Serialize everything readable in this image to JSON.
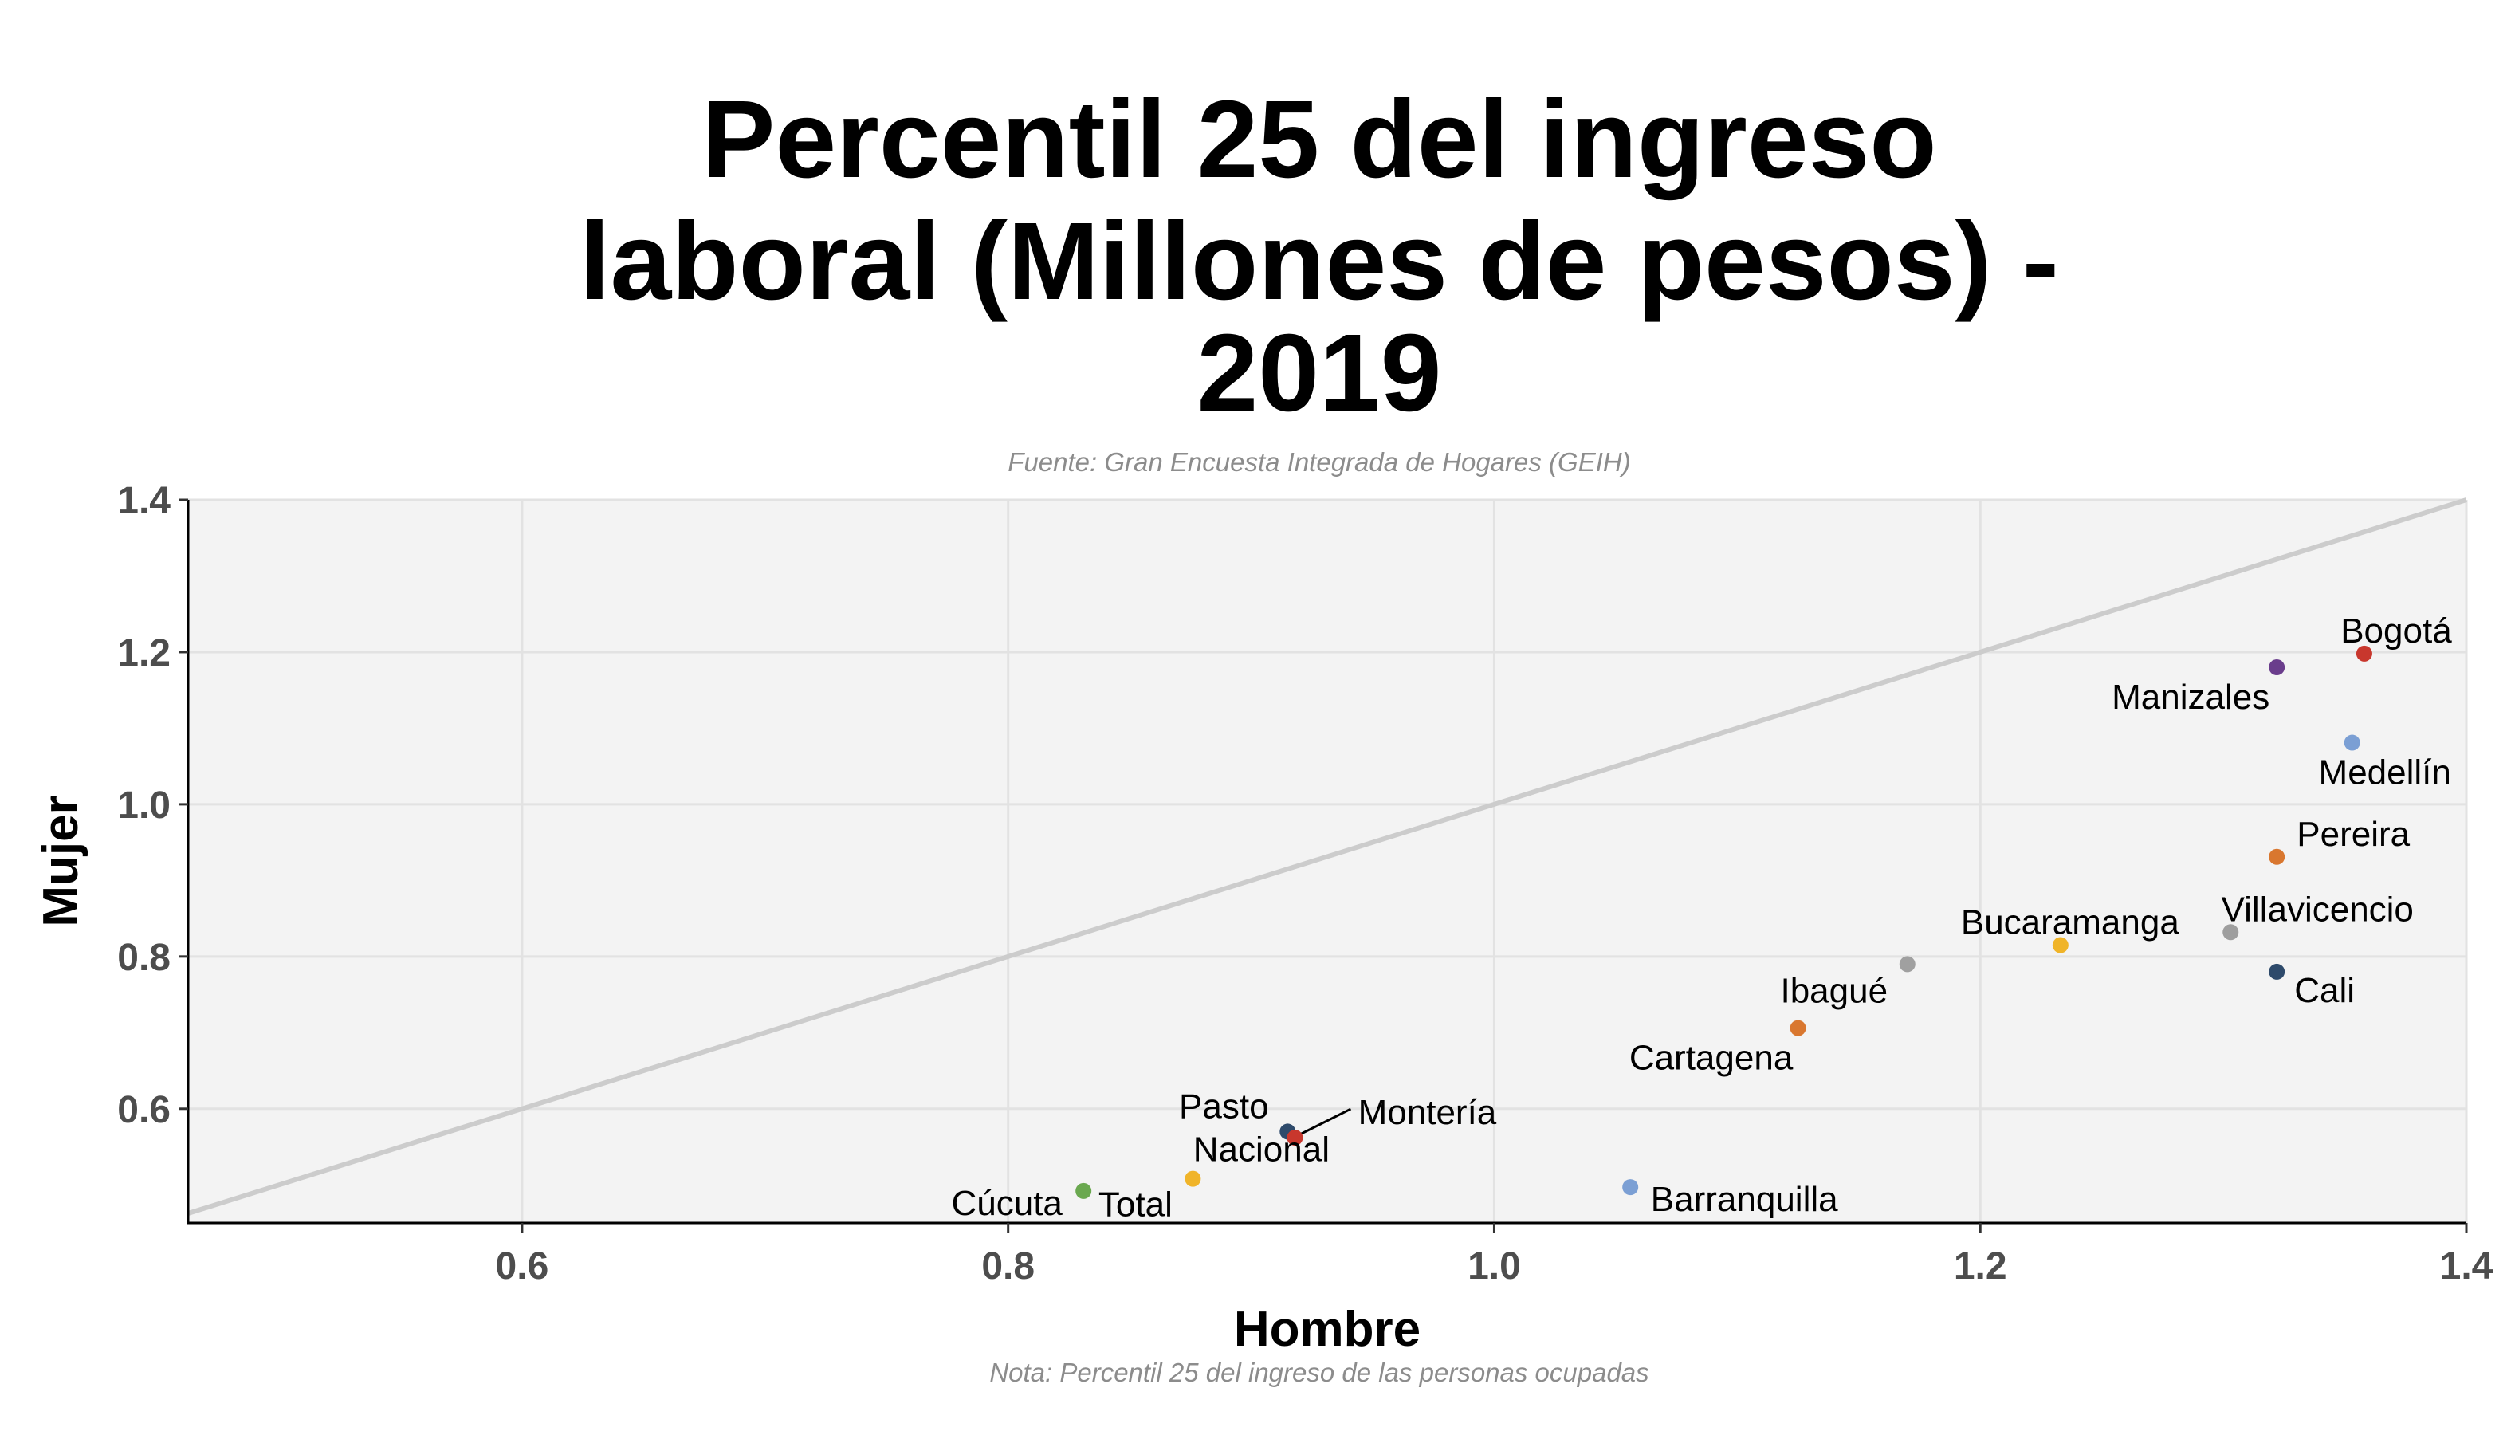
{
  "chart_data": {
    "type": "scatter",
    "title_lines": [
      "Percentil 25 del ingreso",
      "laboral (Millones de pesos) -",
      "2019"
    ],
    "subtitle": "Fuente: Gran Encuesta Integrada de Hogares (GEIH)",
    "caption": "Nota: Percentil 25 del ingreso de las personas ocupadas",
    "xlabel": "Hombre",
    "ylabel": "Mujer",
    "xlim": [
      0.4626,
      1.4
    ],
    "ylim": [
      0.45,
      1.4
    ],
    "xticks": [
      0.6,
      0.8,
      1.0,
      1.2,
      1.4
    ],
    "xtick_labels": [
      "0.6",
      "0.8",
      "1.0",
      "1.2",
      "1.4"
    ],
    "yticks": [
      0.6,
      0.8,
      1.0,
      1.2,
      1.4
    ],
    "ytick_labels": [
      "0.6",
      "0.8",
      "1.0",
      "1.2",
      "1.4"
    ],
    "grid": true,
    "reference_line": "y = x",
    "points": [
      {
        "label": "Bogotá",
        "x": 1.358,
        "y": 1.198,
        "color": "#c8372d"
      },
      {
        "label": "Manizales",
        "x": 1.322,
        "y": 1.18,
        "color": "#6a3d8c"
      },
      {
        "label": "Medellín",
        "x": 1.353,
        "y": 1.081,
        "color": "#7b9fd4"
      },
      {
        "label": "Pereira",
        "x": 1.322,
        "y": 0.931,
        "color": "#d9772f"
      },
      {
        "label": "Villavicencio",
        "x": 1.303,
        "y": 0.832,
        "color": "#9e9e9e"
      },
      {
        "label": "Cali",
        "x": 1.322,
        "y": 0.78,
        "color": "#2e4a6b"
      },
      {
        "label": "Bucaramanga",
        "x": 1.233,
        "y": 0.815,
        "color": "#f0b429"
      },
      {
        "label": "Ibagué",
        "x": 1.17,
        "y": 0.79,
        "color": "#a0a0a0"
      },
      {
        "label": "Cartagena",
        "x": 1.125,
        "y": 0.706,
        "color": "#d9772f"
      },
      {
        "label": "Barranquilla",
        "x": 1.056,
        "y": 0.497,
        "color": "#7b9fd4"
      },
      {
        "label": "Pasto",
        "x": 0.915,
        "y": 0.57,
        "color": "#2e4a6b"
      },
      {
        "label": "Montería",
        "x": 0.918,
        "y": 0.562,
        "color": "#c8372d"
      },
      {
        "label": "Nacional Total",
        "x": 0.876,
        "y": 0.508,
        "color": "#f0b429"
      },
      {
        "label": "Cúcuta",
        "x": 0.831,
        "y": 0.492,
        "color": "#6aa84f"
      }
    ],
    "point_label_lines": {
      "Nacional Total": [
        "Nacional",
        "Total"
      ]
    }
  }
}
